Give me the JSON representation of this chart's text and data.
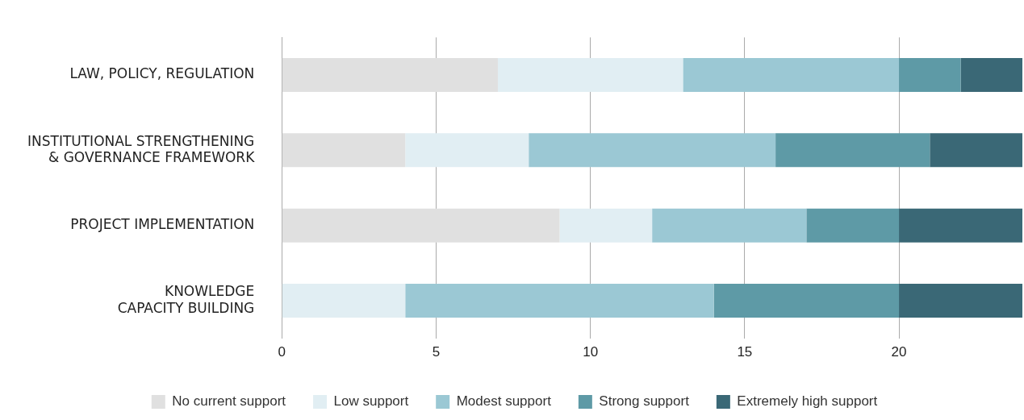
{
  "chart_data": {
    "type": "bar",
    "orientation": "horizontal",
    "stacked": true,
    "categories": [
      "LAW, POLICY, REGULATION",
      "INSTITUTIONAL STRENGTHENING\n& GOVERNANCE FRAMEWORK",
      "PROJECT IMPLEMENTATION",
      "KNOWLEDGE\nCAPACITY BUILDING"
    ],
    "series": [
      {
        "name": "No current support",
        "color": "#e0e0e0",
        "values": [
          7,
          4,
          9,
          0
        ]
      },
      {
        "name": "Low support",
        "color": "#e1eef3",
        "values": [
          6,
          4,
          3,
          4
        ]
      },
      {
        "name": "Modest support",
        "color": "#9bc8d4",
        "values": [
          7,
          8,
          5,
          10
        ]
      },
      {
        "name": "Strong support",
        "color": "#5e9aa6",
        "values": [
          2,
          5,
          3,
          6
        ]
      },
      {
        "name": "Extremely high support",
        "color": "#3a6876",
        "values": [
          2,
          3,
          4,
          4
        ]
      }
    ],
    "xlim": [
      0,
      24
    ],
    "xticks": [
      0,
      5,
      10,
      15,
      20
    ],
    "grid": "x",
    "legend": "bottom"
  }
}
